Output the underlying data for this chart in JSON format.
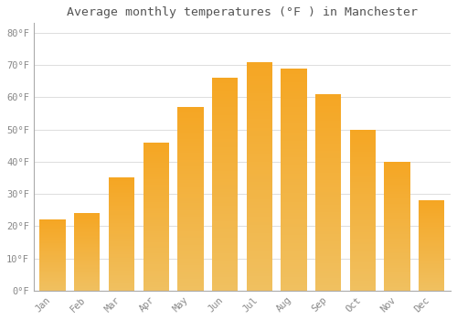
{
  "title": "Average monthly temperatures (°F ) in Manchester",
  "months": [
    "Jan",
    "Feb",
    "Mar",
    "Apr",
    "May",
    "Jun",
    "Jul",
    "Aug",
    "Sep",
    "Oct",
    "Nov",
    "Dec"
  ],
  "values": [
    22,
    24,
    35,
    46,
    57,
    66,
    71,
    69,
    61,
    50,
    40,
    28
  ],
  "bar_color_main": "#F5A623",
  "bar_color_edge": "#F0C060",
  "background_color": "#FFFFFF",
  "plot_bg_color": "#FFFFFF",
  "grid_color": "#DDDDDD",
  "ylim": [
    0,
    83
  ],
  "yticks": [
    0,
    10,
    20,
    30,
    40,
    50,
    60,
    70,
    80
  ],
  "ytick_labels": [
    "0°F",
    "10°F",
    "20°F",
    "30°F",
    "40°F",
    "50°F",
    "60°F",
    "70°F",
    "80°F"
  ],
  "title_fontsize": 9.5,
  "tick_fontsize": 7.5,
  "tick_color": "#888888",
  "title_color": "#555555",
  "title_font": "monospace",
  "tick_font": "monospace",
  "bar_width": 0.75,
  "spine_color": "#AAAAAA"
}
